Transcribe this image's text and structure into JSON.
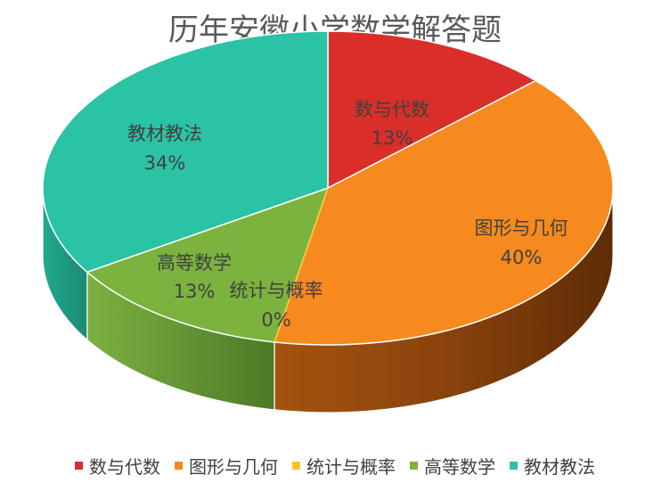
{
  "chart_data": {
    "type": "pie",
    "title": "历年安徽小学数学解答题",
    "categories": [
      "数与代数",
      "图形与几何",
      "统计与概率",
      "高等数学",
      "教材教法"
    ],
    "values": [
      13,
      40,
      0,
      13,
      34
    ],
    "labels": [
      "13%",
      "40%",
      "0%",
      "13%",
      "34%"
    ],
    "colors": [
      "#DA2E2A",
      "#F68A1E",
      "#F3C72B",
      "#7BB33E",
      "#2BC3A6"
    ],
    "side_colors": [
      "#9E1F1C",
      "#9A4A0C",
      "#B08A14",
      "#5A8A2A",
      "#1E8E79"
    ],
    "style": "3d",
    "legend_position": "bottom"
  }
}
